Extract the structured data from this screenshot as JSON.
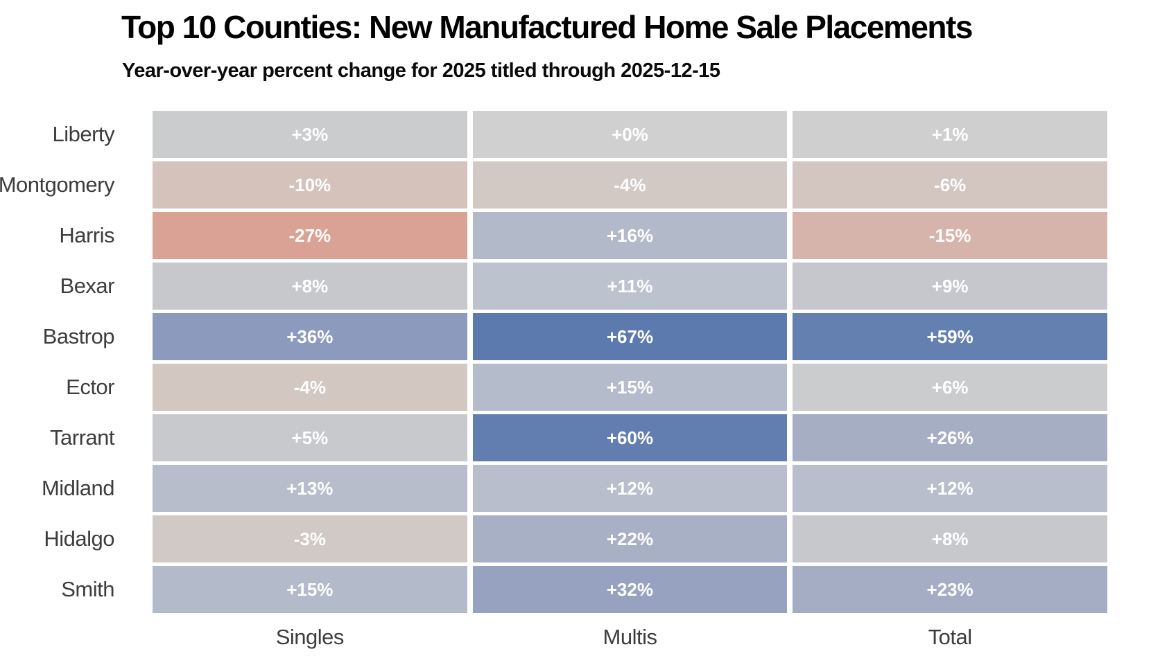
{
  "header": {
    "title": "Top 10 Counties: New Manufactured Home Sale Placements",
    "subtitle": "Year-over-year percent change for 2025 titled through 2025-12-15"
  },
  "chart_data": {
    "type": "heatmap",
    "title": "Top 10 Counties: New Manufactured Home Sale Placements",
    "subtitle": "Year-over-year percent change for 2025 titled through 2025-12-15",
    "value_unit": "percent_change_yoy",
    "columns": [
      "Singles",
      "Multis",
      "Total"
    ],
    "rows": [
      "Liberty",
      "Montgomery",
      "Harris",
      "Bexar",
      "Bastrop",
      "Ector",
      "Tarrant",
      "Midland",
      "Hidalgo",
      "Smith"
    ],
    "series": [
      {
        "name": "Singles",
        "values": [
          3,
          -10,
          -27,
          8,
          36,
          -4,
          5,
          13,
          -3,
          15
        ]
      },
      {
        "name": "Multis",
        "values": [
          0,
          -4,
          16,
          11,
          67,
          15,
          60,
          12,
          22,
          32
        ]
      },
      {
        "name": "Total",
        "values": [
          1,
          -6,
          -15,
          9,
          59,
          6,
          26,
          12,
          8,
          23
        ]
      }
    ],
    "cell_labels": [
      [
        "+3%",
        "+0%",
        "+1%"
      ],
      [
        "-10%",
        "-4%",
        "-6%"
      ],
      [
        "-27%",
        "+16%",
        "-15%"
      ],
      [
        "+8%",
        "+11%",
        "+9%"
      ],
      [
        "+36%",
        "+67%",
        "+59%"
      ],
      [
        "-4%",
        "+15%",
        "+6%"
      ],
      [
        "+5%",
        "+60%",
        "+26%"
      ],
      [
        "+13%",
        "+12%",
        "+12%"
      ],
      [
        "-3%",
        "+22%",
        "+8%"
      ],
      [
        "+15%",
        "+32%",
        "+23%"
      ]
    ],
    "cell_colors": [
      [
        "#cbccce",
        "#d0d0d0",
        "#cfcfd0"
      ],
      [
        "#d4c2bb",
        "#d2c8c4",
        "#d3c5c0"
      ],
      [
        "#d9a294",
        "#b2bac9",
        "#d7b4ab"
      ],
      [
        "#c7c8cc",
        "#bdc2cf",
        "#c5c7cc"
      ],
      [
        "#8c9abd",
        "#5c7aad",
        "#6480b1"
      ],
      [
        "#d2c7c1",
        "#b4bbca",
        "#cbccce"
      ],
      [
        "#c7c9cd",
        "#627eb0",
        "#a6aec4"
      ],
      [
        "#b7bdcb",
        "#b9becc",
        "#b9becc"
      ],
      [
        "#d1c9c5",
        "#a8b0c6",
        "#c6c8cc"
      ],
      [
        "#b3bac9",
        "#96a2c0",
        "#a4adc4"
      ]
    ],
    "colormap": {
      "strong_negative": "#d9a294",
      "zero": "#d0d0d0",
      "strong_positive": "#5c7aad"
    },
    "cell_text_color": "#ffffff",
    "axis_label_color": "#3d3d3d",
    "legend": "none",
    "grid_gap_color": "#ffffff"
  }
}
